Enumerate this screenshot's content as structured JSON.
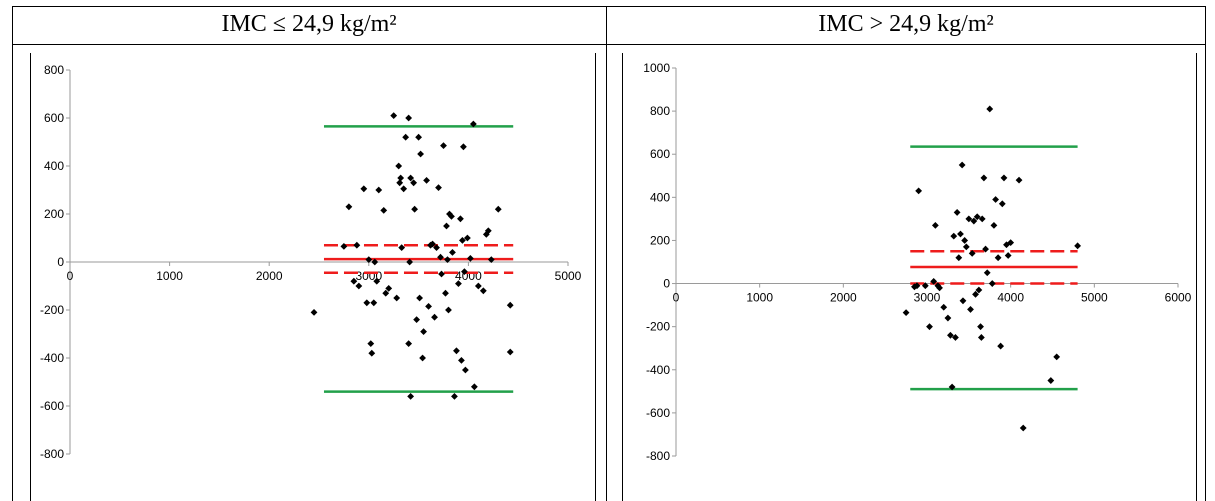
{
  "table": {
    "headers": [
      "IMC ≤ 24,9 kg/m²",
      "IMC > 24,9 kg/m²"
    ]
  },
  "chart_data": [
    {
      "type": "scatter",
      "title": "",
      "xlabel": "",
      "ylabel": "",
      "xlim": [
        0,
        5000
      ],
      "ylim": [
        -800,
        800
      ],
      "xticks": [
        0,
        1000,
        2000,
        3000,
        4000,
        5000
      ],
      "yticks": [
        800,
        600,
        400,
        200,
        0,
        -200,
        -400,
        -600,
        -800
      ],
      "grid": false,
      "lines": [
        {
          "y": 565,
          "x": [
            2550,
            4450
          ],
          "color": "#22a04a",
          "style": "solid"
        },
        {
          "y": -540,
          "x": [
            2550,
            4450
          ],
          "color": "#22a04a",
          "style": "solid"
        },
        {
          "y": 12,
          "x": [
            2550,
            4450
          ],
          "color": "#ee1c1c",
          "style": "solid"
        },
        {
          "y": 70,
          "x": [
            2550,
            4450
          ],
          "color": "#ee1c1c",
          "style": "dashed"
        },
        {
          "y": -45,
          "x": [
            2550,
            4450
          ],
          "color": "#ee1c1c",
          "style": "dashed"
        }
      ],
      "points": [
        [
          2450,
          -210
        ],
        [
          2750,
          65
        ],
        [
          2800,
          230
        ],
        [
          2850,
          -80
        ],
        [
          2880,
          70
        ],
        [
          2900,
          -100
        ],
        [
          2950,
          305
        ],
        [
          2980,
          -170
        ],
        [
          3000,
          10
        ],
        [
          3020,
          -340
        ],
        [
          3030,
          -380
        ],
        [
          3050,
          -170
        ],
        [
          3060,
          0
        ],
        [
          3080,
          -80
        ],
        [
          3100,
          300
        ],
        [
          3150,
          215
        ],
        [
          3170,
          -130
        ],
        [
          3200,
          -110
        ],
        [
          3250,
          610
        ],
        [
          3280,
          -150
        ],
        [
          3300,
          400
        ],
        [
          3310,
          330
        ],
        [
          3320,
          350
        ],
        [
          3330,
          60
        ],
        [
          3350,
          305
        ],
        [
          3370,
          520
        ],
        [
          3400,
          600
        ],
        [
          3400,
          -340
        ],
        [
          3410,
          0
        ],
        [
          3420,
          350
        ],
        [
          3450,
          330
        ],
        [
          3460,
          220
        ],
        [
          3480,
          -240
        ],
        [
          3500,
          520
        ],
        [
          3510,
          -150
        ],
        [
          3520,
          450
        ],
        [
          3540,
          -400
        ],
        [
          3550,
          -290
        ],
        [
          3580,
          340
        ],
        [
          3600,
          -185
        ],
        [
          3620,
          70
        ],
        [
          3640,
          75
        ],
        [
          3660,
          -230
        ],
        [
          3680,
          60
        ],
        [
          3700,
          310
        ],
        [
          3720,
          20
        ],
        [
          3730,
          -50
        ],
        [
          3750,
          485
        ],
        [
          3770,
          -130
        ],
        [
          3780,
          150
        ],
        [
          3790,
          10
        ],
        [
          3800,
          -200
        ],
        [
          3810,
          200
        ],
        [
          3830,
          190
        ],
        [
          3840,
          40
        ],
        [
          3860,
          -560
        ],
        [
          3880,
          -370
        ],
        [
          3900,
          -90
        ],
        [
          3920,
          180
        ],
        [
          3930,
          -410
        ],
        [
          3940,
          90
        ],
        [
          3950,
          480
        ],
        [
          3960,
          -40
        ],
        [
          3970,
          -450
        ],
        [
          3990,
          100
        ],
        [
          4020,
          15
        ],
        [
          4050,
          575
        ],
        [
          4060,
          -520
        ],
        [
          4100,
          -100
        ],
        [
          4150,
          -120
        ],
        [
          4180,
          115
        ],
        [
          4200,
          130
        ],
        [
          4230,
          10
        ],
        [
          4300,
          220
        ],
        [
          4420,
          -180
        ],
        [
          4420,
          -375
        ],
        [
          3420,
          -560
        ]
      ]
    },
    {
      "type": "scatter",
      "title": "",
      "xlabel": "",
      "ylabel": "",
      "xlim": [
        0,
        6000
      ],
      "ylim": [
        -800,
        1000
      ],
      "xticks": [
        0,
        1000,
        2000,
        3000,
        4000,
        5000,
        6000
      ],
      "yticks": [
        1000,
        800,
        600,
        400,
        200,
        0,
        -200,
        -400,
        -600,
        -800
      ],
      "grid": false,
      "lines": [
        {
          "y": 635,
          "x": [
            2800,
            4800
          ],
          "color": "#22a04a",
          "style": "solid"
        },
        {
          "y": -490,
          "x": [
            2800,
            4800
          ],
          "color": "#22a04a",
          "style": "solid"
        },
        {
          "y": 77,
          "x": [
            2800,
            4800
          ],
          "color": "#ee1c1c",
          "style": "solid"
        },
        {
          "y": 150,
          "x": [
            2800,
            4800
          ],
          "color": "#ee1c1c",
          "style": "dashed"
        },
        {
          "y": 0,
          "x": [
            2800,
            4800
          ],
          "color": "#ee1c1c",
          "style": "dashed"
        }
      ],
      "points": [
        [
          2750,
          -135
        ],
        [
          2850,
          -15
        ],
        [
          2880,
          -10
        ],
        [
          2900,
          430
        ],
        [
          2980,
          -10
        ],
        [
          3030,
          -200
        ],
        [
          3080,
          10
        ],
        [
          3100,
          270
        ],
        [
          3130,
          -10
        ],
        [
          3150,
          -20
        ],
        [
          3200,
          -110
        ],
        [
          3250,
          -160
        ],
        [
          3280,
          -240
        ],
        [
          3300,
          -480
        ],
        [
          3320,
          220
        ],
        [
          3340,
          -250
        ],
        [
          3360,
          330
        ],
        [
          3380,
          120
        ],
        [
          3400,
          230
        ],
        [
          3420,
          550
        ],
        [
          3430,
          -80
        ],
        [
          3450,
          200
        ],
        [
          3470,
          170
        ],
        [
          3500,
          300
        ],
        [
          3520,
          -120
        ],
        [
          3540,
          140
        ],
        [
          3560,
          290
        ],
        [
          3580,
          -50
        ],
        [
          3600,
          310
        ],
        [
          3620,
          -30
        ],
        [
          3640,
          -200
        ],
        [
          3650,
          -250
        ],
        [
          3660,
          300
        ],
        [
          3680,
          490
        ],
        [
          3700,
          160
        ],
        [
          3720,
          50
        ],
        [
          3750,
          810
        ],
        [
          3780,
          0
        ],
        [
          3800,
          270
        ],
        [
          3820,
          390
        ],
        [
          3850,
          120
        ],
        [
          3880,
          -290
        ],
        [
          3900,
          370
        ],
        [
          3920,
          490
        ],
        [
          3950,
          180
        ],
        [
          3970,
          130
        ],
        [
          4000,
          190
        ],
        [
          4100,
          480
        ],
        [
          4150,
          -670
        ],
        [
          4480,
          -450
        ],
        [
          4550,
          -340
        ],
        [
          4800,
          175
        ]
      ]
    }
  ]
}
